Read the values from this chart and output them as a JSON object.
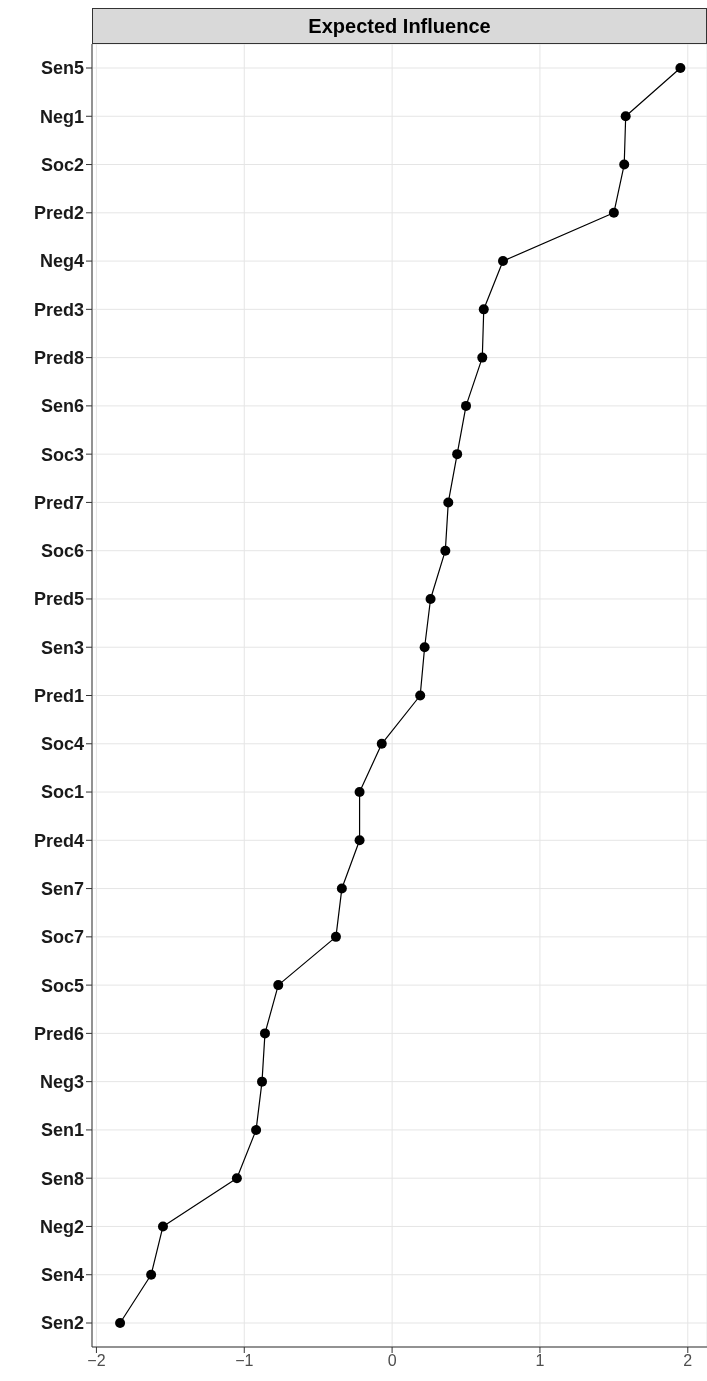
{
  "chart_data": {
    "type": "line",
    "title": "Expected Influence",
    "orientation": "horizontal",
    "categories": [
      "Sen5",
      "Neg1",
      "Soc2",
      "Pred2",
      "Neg4",
      "Pred3",
      "Pred8",
      "Sen6",
      "Soc3",
      "Pred7",
      "Soc6",
      "Pred5",
      "Sen3",
      "Pred1",
      "Soc4",
      "Soc1",
      "Pred4",
      "Sen7",
      "Soc7",
      "Soc5",
      "Pred6",
      "Neg3",
      "Sen1",
      "Sen8",
      "Neg2",
      "Sen4",
      "Sen2"
    ],
    "series": [
      {
        "color": "#000000",
        "values": [
          1.95,
          1.58,
          1.57,
          1.5,
          0.75,
          0.62,
          0.61,
          0.5,
          0.44,
          0.38,
          0.36,
          0.26,
          0.22,
          0.19,
          -0.07,
          -0.22,
          -0.22,
          -0.34,
          -0.38,
          -0.77,
          -0.86,
          -0.88,
          -0.92,
          -1.05,
          -1.55,
          -1.63,
          -1.84
        ]
      }
    ],
    "xlim": [
      -2.03,
      2.13
    ],
    "xticks": [
      {
        "value": -2,
        "label": "−2"
      },
      {
        "value": -1,
        "label": "−1"
      },
      0,
      1,
      2
    ],
    "grid": true,
    "marker": "circle",
    "line_style": "solid"
  }
}
